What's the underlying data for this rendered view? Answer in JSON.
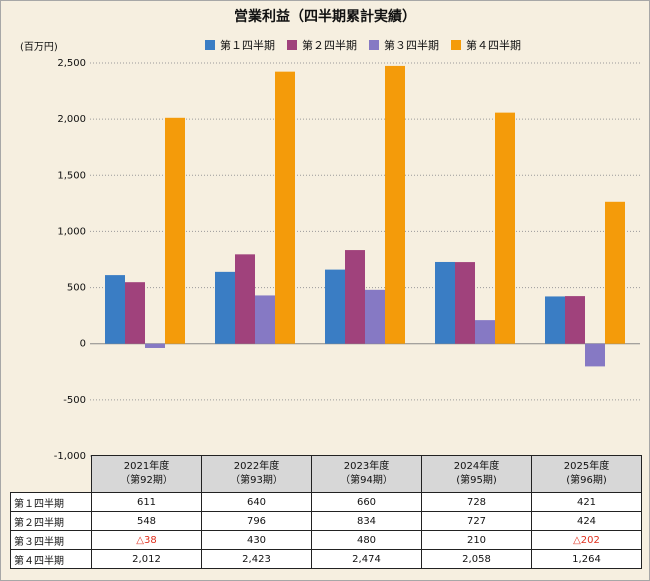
{
  "chart_data": {
    "type": "bar",
    "title": "営業利益（四半期累計実績）",
    "unit": "(百万円)",
    "ylim": [
      -1000,
      2500
    ],
    "yticks": [
      "2,500",
      "2,000",
      "1,500",
      "1,000",
      "500",
      "0",
      "-500",
      "-1,000"
    ],
    "ytick_values": [
      2500,
      2000,
      1500,
      1000,
      500,
      0,
      -500,
      -1000
    ],
    "grid": "dotted horizontal",
    "legend_position": "top",
    "categories": [
      "2021年度（第92期）",
      "2022年度（第93期）",
      "2023年度（第94期）",
      "2024年度（第95期）",
      "2025年度（第96期）"
    ],
    "series": [
      {
        "name": "第１四半期",
        "color": "#3a7dc4",
        "values": [
          611,
          640,
          660,
          728,
          421
        ]
      },
      {
        "name": "第２四半期",
        "color": "#a0427c",
        "values": [
          548,
          796,
          834,
          727,
          424
        ]
      },
      {
        "name": "第３四半期",
        "color": "#8679c4",
        "values": [
          -38,
          430,
          480,
          210,
          -202
        ]
      },
      {
        "name": "第４四半期",
        "color": "#f49b0a",
        "values": [
          2012,
          2423,
          2474,
          2058,
          1264
        ]
      }
    ]
  },
  "table": {
    "years": [
      "2021年度",
      "2022年度",
      "2023年度",
      "2024年度",
      "2025年度"
    ],
    "periods": [
      "（第92期）",
      "（第93期）",
      "（第94期）",
      "(第95期)",
      "(第96期)"
    ],
    "rows": [
      {
        "label": "第１四半期",
        "cells": [
          "611",
          "640",
          "660",
          "728",
          "421"
        ]
      },
      {
        "label": "第２四半期",
        "cells": [
          "548",
          "796",
          "834",
          "727",
          "424"
        ]
      },
      {
        "label": "第３四半期",
        "cells": [
          "△38",
          "430",
          "480",
          "210",
          "△202"
        ]
      },
      {
        "label": "第４四半期",
        "cells": [
          "2,012",
          "2,423",
          "2,474",
          "2,058",
          "1,264"
        ]
      }
    ]
  }
}
